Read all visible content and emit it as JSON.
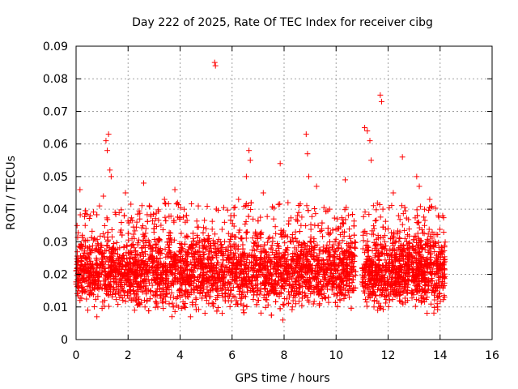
{
  "chart_data": {
    "type": "scatter",
    "title": "Day 222 of 2025, Rate Of TEC Index for receiver cibg",
    "xlabel": "GPS time / hours",
    "ylabel": "ROTI / TECUs",
    "xlim": [
      0,
      16
    ],
    "ylim": [
      0,
      0.09
    ],
    "xticks": [
      "0",
      "2",
      "4",
      "6",
      "8",
      "10",
      "12",
      "14",
      "16"
    ],
    "yticks": [
      "0",
      "0.01",
      "0.02",
      "0.03",
      "0.04",
      "0.05",
      "0.06",
      "0.07",
      "0.08",
      "0.09"
    ],
    "grid": true,
    "marker": "+",
    "marker_color": "#ff0000",
    "series": [
      {
        "name": "ROTI",
        "points": [
          [
            0.05,
            0.024
          ],
          [
            0.1,
            0.016
          ],
          [
            0.15,
            0.012
          ],
          [
            0.2,
            0.029
          ],
          [
            0.15,
            0.046
          ],
          [
            0.3,
            0.021
          ],
          [
            0.35,
            0.035
          ],
          [
            0.4,
            0.018
          ],
          [
            0.45,
            0.009
          ],
          [
            0.5,
            0.026
          ],
          [
            0.55,
            0.038
          ],
          [
            0.6,
            0.014
          ],
          [
            0.65,
            0.022
          ],
          [
            0.7,
            0.031
          ],
          [
            0.75,
            0.019
          ],
          [
            0.8,
            0.007
          ],
          [
            0.85,
            0.027
          ],
          [
            0.9,
            0.041
          ],
          [
            0.95,
            0.017
          ],
          [
            1.0,
            0.023
          ],
          [
            1.05,
            0.044
          ],
          [
            1.1,
            0.012
          ],
          [
            1.15,
            0.061
          ],
          [
            1.2,
            0.058
          ],
          [
            1.25,
            0.063
          ],
          [
            1.3,
            0.052
          ],
          [
            1.35,
            0.05
          ],
          [
            1.4,
            0.028
          ],
          [
            1.45,
            0.016
          ],
          [
            1.5,
            0.039
          ],
          [
            1.6,
            0.021
          ],
          [
            1.7,
            0.033
          ],
          [
            1.8,
            0.012
          ],
          [
            1.9,
            0.045
          ],
          [
            1.95,
            0.025
          ],
          [
            2.05,
            0.018
          ],
          [
            2.15,
            0.031
          ],
          [
            2.25,
            0.009
          ],
          [
            2.35,
            0.026
          ],
          [
            2.45,
            0.037
          ],
          [
            2.55,
            0.02
          ],
          [
            2.6,
            0.048
          ],
          [
            2.7,
            0.014
          ],
          [
            2.8,
            0.029
          ],
          [
            2.9,
            0.022
          ],
          [
            3.0,
            0.034
          ],
          [
            3.1,
            0.011
          ],
          [
            3.2,
            0.027
          ],
          [
            3.3,
            0.019
          ],
          [
            3.4,
            0.043
          ],
          [
            3.5,
            0.016
          ],
          [
            3.6,
            0.03
          ],
          [
            3.7,
            0.024
          ],
          [
            3.8,
            0.046
          ],
          [
            3.9,
            0.042
          ],
          [
            4.0,
            0.013
          ],
          [
            4.1,
            0.028
          ],
          [
            4.2,
            0.036
          ],
          [
            4.3,
            0.018
          ],
          [
            4.4,
            0.007
          ],
          [
            4.5,
            0.031
          ],
          [
            4.6,
            0.023
          ],
          [
            4.7,
            0.041
          ],
          [
            4.8,
            0.015
          ],
          [
            4.9,
            0.026
          ],
          [
            5.0,
            0.034
          ],
          [
            5.1,
            0.011
          ],
          [
            5.2,
            0.025
          ],
          [
            5.33,
            0.085
          ],
          [
            5.36,
            0.084
          ],
          [
            5.45,
            0.019
          ],
          [
            5.55,
            0.03
          ],
          [
            5.65,
            0.013
          ],
          [
            5.75,
            0.027
          ],
          [
            5.85,
            0.021
          ],
          [
            5.95,
            0.038
          ],
          [
            6.05,
            0.016
          ],
          [
            6.15,
            0.029
          ],
          [
            6.25,
            0.043
          ],
          [
            6.35,
            0.018
          ],
          [
            6.45,
            0.024
          ],
          [
            6.55,
            0.05
          ],
          [
            6.65,
            0.058
          ],
          [
            6.7,
            0.055
          ],
          [
            6.8,
            0.022
          ],
          [
            6.9,
            0.033
          ],
          [
            7.0,
            0.012
          ],
          [
            7.1,
            0.027
          ],
          [
            7.2,
            0.045
          ],
          [
            7.3,
            0.019
          ],
          [
            7.4,
            0.031
          ],
          [
            7.5,
            0.024
          ],
          [
            7.6,
            0.037
          ],
          [
            7.7,
            0.014
          ],
          [
            7.8,
            0.028
          ],
          [
            7.85,
            0.054
          ],
          [
            7.95,
            0.006
          ],
          [
            8.05,
            0.021
          ],
          [
            8.15,
            0.042
          ],
          [
            8.25,
            0.017
          ],
          [
            8.35,
            0.03
          ],
          [
            8.45,
            0.011
          ],
          [
            8.55,
            0.025
          ],
          [
            8.65,
            0.035
          ],
          [
            8.75,
            0.019
          ],
          [
            8.85,
            0.063
          ],
          [
            8.9,
            0.057
          ],
          [
            8.95,
            0.05
          ],
          [
            9.05,
            0.028
          ],
          [
            9.15,
            0.016
          ],
          [
            9.25,
            0.047
          ],
          [
            9.35,
            0.022
          ],
          [
            9.45,
            0.034
          ],
          [
            9.55,
            0.013
          ],
          [
            9.65,
            0.029
          ],
          [
            9.75,
            0.04
          ],
          [
            9.85,
            0.018
          ],
          [
            9.95,
            0.025
          ],
          [
            10.05,
            0.037
          ],
          [
            10.15,
            0.012
          ],
          [
            10.25,
            0.027
          ],
          [
            10.35,
            0.049
          ],
          [
            10.45,
            0.02
          ],
          [
            10.55,
            0.031
          ],
          [
            10.65,
            0.015
          ],
          [
            10.7,
            0.024
          ],
          [
            11.05,
            0.033
          ],
          [
            11.1,
            0.065
          ],
          [
            11.2,
            0.064
          ],
          [
            11.3,
            0.061
          ],
          [
            11.35,
            0.055
          ],
          [
            11.45,
            0.018
          ],
          [
            11.55,
            0.029
          ],
          [
            11.6,
            0.009
          ],
          [
            11.7,
            0.075
          ],
          [
            11.75,
            0.073
          ],
          [
            11.8,
            0.04
          ],
          [
            11.9,
            0.022
          ],
          [
            12.0,
            0.034
          ],
          [
            12.1,
            0.014
          ],
          [
            12.2,
            0.045
          ],
          [
            12.3,
            0.026
          ],
          [
            12.4,
            0.038
          ],
          [
            12.5,
            0.019
          ],
          [
            12.55,
            0.056
          ],
          [
            12.65,
            0.031
          ],
          [
            12.75,
            0.012
          ],
          [
            12.95,
            0.028
          ],
          [
            13.05,
            0.019
          ],
          [
            13.1,
            0.05
          ],
          [
            13.2,
            0.047
          ],
          [
            13.3,
            0.024
          ],
          [
            13.4,
            0.035
          ],
          [
            13.5,
            0.013
          ],
          [
            13.6,
            0.043
          ],
          [
            13.7,
            0.021
          ],
          [
            13.8,
            0.03
          ],
          [
            13.9,
            0.016
          ],
          [
            14.0,
            0.027
          ],
          [
            14.1,
            0.038
          ],
          [
            14.15,
            0.019
          ]
        ]
      }
    ]
  }
}
